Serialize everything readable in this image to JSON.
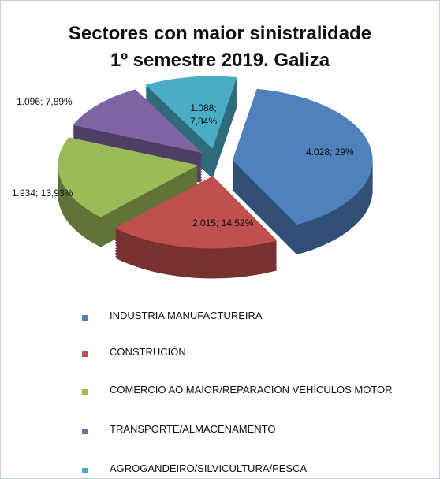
{
  "chart_data": {
    "type": "pie",
    "title": "Sectores con maior sinistralidade",
    "subtitle": "1º semestre 2019.  Galiza",
    "categories": [
      "INDUSTRIA MANUFACTUREIRA",
      "CONSTRUCIÓN",
      "COMERCIO AO MAIOR/REPARACIÓN VEHÍCULOS MOTOR",
      "TRANSPORTE/ALMACENAMENTO",
      "AGROGANDEIRO/SILVICULTURA/PESCA"
    ],
    "values": [
      4028,
      2015,
      1934,
      1096,
      1088
    ],
    "value_labels": [
      "4.028; 29%",
      "2.015; 14,52%",
      "1.934; 13,93%",
      "1.096; 7,89%",
      "1.088; 7,84%"
    ],
    "colors": [
      "#4f81bd",
      "#c0504d",
      "#9bbb59",
      "#8064a2",
      "#4bacc6"
    ]
  }
}
